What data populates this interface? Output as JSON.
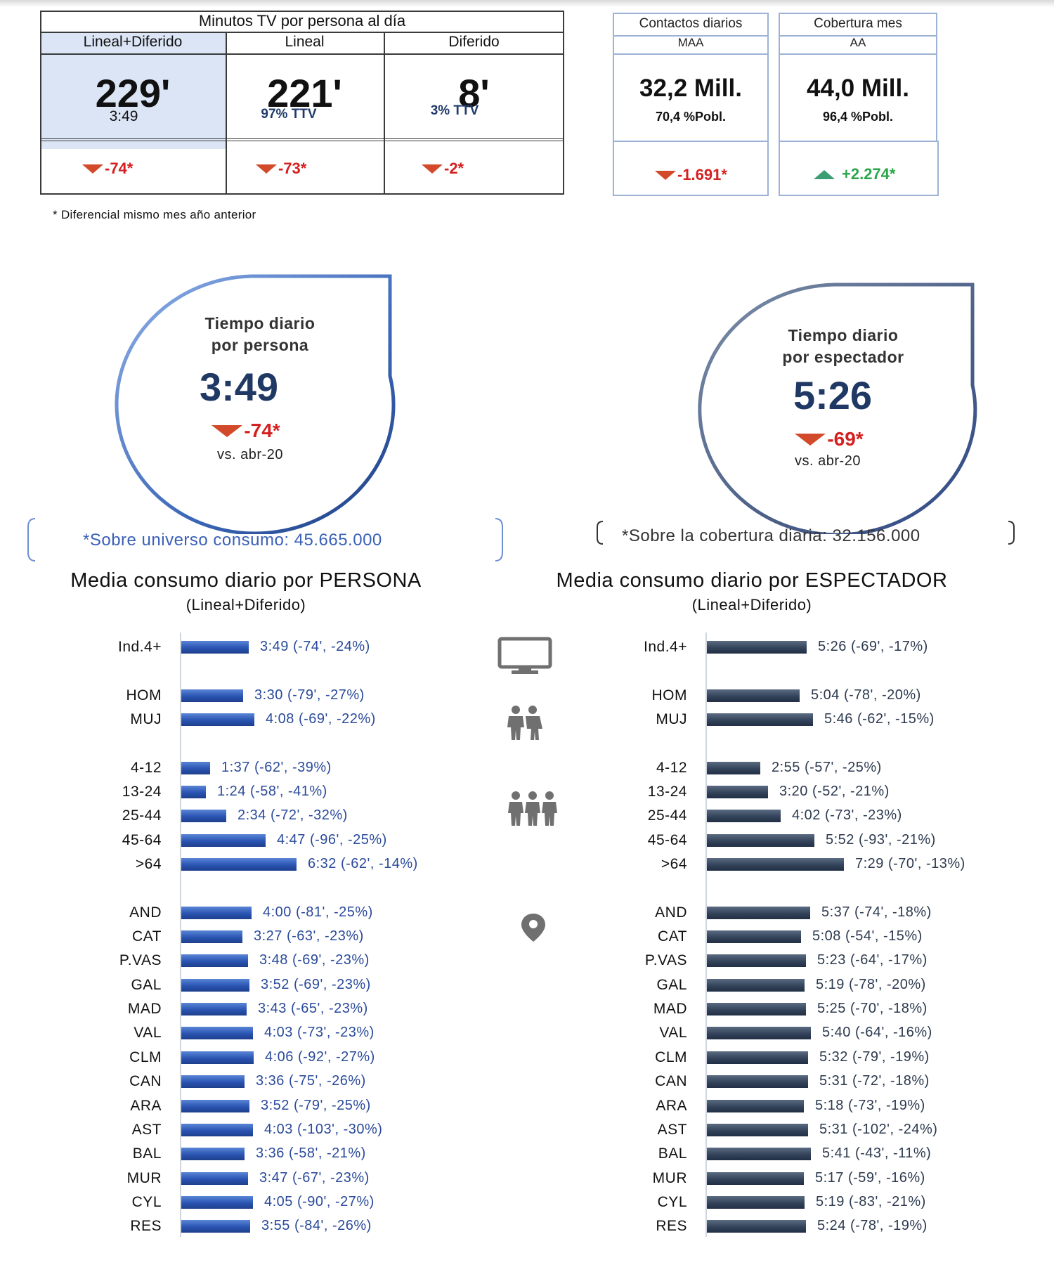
{
  "summary": {
    "title": "Minutos TV por persona al día",
    "columns": [
      {
        "header": "Lineal+Diferido",
        "value": "229'",
        "sub": "3:49",
        "delta": "-74*"
      },
      {
        "header": "Lineal",
        "value": "221'",
        "sub": "97% TTV",
        "delta": "-73*"
      },
      {
        "header": "Diferido",
        "value": "8'",
        "sub": "3% TTV",
        "delta": "-2*"
      }
    ],
    "contactos": {
      "title": "Contactos diarios",
      "subtitle": "MAA",
      "value": "32,2 Mill.",
      "pobl": "70,4 %Pobl.",
      "delta": "-1.691*"
    },
    "cobertura": {
      "title": "Cobertura mes",
      "subtitle": "AA",
      "value": "44,0 Mill.",
      "pobl": "96,4 %Pobl.",
      "delta": "+2.274*"
    },
    "note": "* Diferencial mismo mes año anterior"
  },
  "drops": {
    "persona": {
      "title_1": "Tiempo diario",
      "title_2": "por persona",
      "value": "3:49",
      "delta": "-74*",
      "vs": "vs. abr-20"
    },
    "espectador": {
      "title_1": "Tiempo diario",
      "title_2": "por espectador",
      "value": "5:26",
      "delta": "-69*",
      "vs": "vs. abr-20"
    }
  },
  "universe_left": "*Sobre universo consumo: 45.665.000",
  "universe_right": "*Sobre la cobertura diaria: 32.156.000",
  "section_left": {
    "title": "Media consumo diario por PERSONA",
    "subtitle": "(Lineal+Diferido)"
  },
  "section_right": {
    "title": "Media consumo diario por ESPECTADOR",
    "subtitle": "(Lineal+Diferido)"
  },
  "icons": [
    "tv-icon",
    "couple-icon",
    "group-icon",
    "location-pin-icon"
  ],
  "colors": {
    "left_bar": "#2a54b2",
    "right_bar": "#33435a",
    "negative": "#d42020",
    "positive": "#2aa64a",
    "down_arrow": "#d24a2a",
    "up_arrow": "#3a9e72",
    "title_blue": "#1f3864"
  },
  "chart_data": [
    {
      "type": "bar",
      "orientation": "horizontal",
      "title": "Media consumo diario por PERSONA",
      "subtitle": "(Lineal+Diferido)",
      "categories": [
        "Ind.4+",
        "HOM",
        "MUJ",
        "4-12",
        "13-24",
        "25-44",
        "45-64",
        ">64",
        "AND",
        "CAT",
        "P.VAS",
        "GAL",
        "MAD",
        "VAL",
        "CLM",
        "CAN",
        "ARA",
        "AST",
        "BAL",
        "MUR",
        "CYL",
        "RES"
      ],
      "groups": [
        0,
        1,
        1,
        2,
        2,
        2,
        2,
        2,
        3,
        3,
        3,
        3,
        3,
        3,
        3,
        3,
        3,
        3,
        3,
        3,
        3,
        3
      ],
      "values_minutes": [
        229,
        210,
        248,
        97,
        84,
        154,
        287,
        392,
        240,
        207,
        228,
        232,
        223,
        243,
        246,
        216,
        232,
        243,
        216,
        227,
        245,
        235
      ],
      "labels": [
        "3:49 (-74', -24%)",
        "3:30 (-79', -27%)",
        "4:08 (-69', -22%)",
        "1:37 (-62', -39%)",
        "1:24 (-58', -41%)",
        "2:34 (-72', -32%)",
        "4:47 (-96', -25%)",
        "6:32 (-62', -14%)",
        "4:00 (-81', -25%)",
        "3:27 (-63', -23%)",
        "3:48 (-69', -23%)",
        "3:52 (-69', -23%)",
        "3:43 (-65', -23%)",
        "4:03 (-73', -23%)",
        "4:06 (-92', -27%)",
        "3:36 (-75', -26%)",
        "3:52 (-79', -25%)",
        "4:03 (-103', -30%)",
        "3:36 (-58', -21%)",
        "3:47 (-67', -23%)",
        "4:05 (-90', -27%)",
        "3:55 (-84', -26%)"
      ]
    },
    {
      "type": "bar",
      "orientation": "horizontal",
      "title": "Media consumo diario por ESPECTADOR",
      "subtitle": "(Lineal+Diferido)",
      "categories": [
        "Ind.4+",
        "HOM",
        "MUJ",
        "4-12",
        "13-24",
        "25-44",
        "45-64",
        ">64",
        "AND",
        "CAT",
        "P.VAS",
        "GAL",
        "MAD",
        "VAL",
        "CLM",
        "CAN",
        "ARA",
        "AST",
        "BAL",
        "MUR",
        "CYL",
        "RES"
      ],
      "groups": [
        0,
        1,
        1,
        2,
        2,
        2,
        2,
        2,
        3,
        3,
        3,
        3,
        3,
        3,
        3,
        3,
        3,
        3,
        3,
        3,
        3,
        3
      ],
      "values_minutes": [
        326,
        304,
        346,
        175,
        200,
        242,
        352,
        449,
        337,
        308,
        323,
        319,
        325,
        340,
        332,
        331,
        318,
        331,
        341,
        317,
        319,
        324
      ],
      "labels": [
        "5:26 (-69', -17%)",
        "5:04 (-78', -20%)",
        "5:46 (-62', -15%)",
        "2:55 (-57', -25%)",
        "3:20 (-52', -21%)",
        "4:02 (-73', -23%)",
        "5:52 (-93', -21%)",
        "7:29 (-70', -13%)",
        "5:37 (-74', -18%)",
        "5:08 (-54', -15%)",
        "5:23 (-64', -17%)",
        "5:19 (-78', -20%)",
        "5:25 (-70', -18%)",
        "5:40 (-64', -16%)",
        "5:32 (-79', -19%)",
        "5:31 (-72', -18%)",
        "5:18 (-73', -19%)",
        "5:31 (-102', -24%)",
        "5:41 (-43', -11%)",
        "5:17 (-59', -16%)",
        "5:19 (-83', -21%)",
        "5:24 (-78', -19%)"
      ]
    }
  ]
}
